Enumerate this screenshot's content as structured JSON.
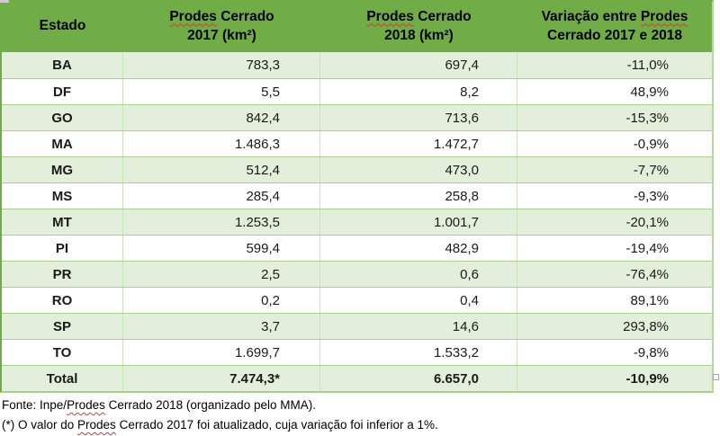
{
  "colors": {
    "header_green": "#70AD47",
    "row_green": "#E2EFDA",
    "grid_h": "#A9D08E",
    "grid_v": "#CCE2BA",
    "squiggle_red": "#D83A2E"
  },
  "table": {
    "columns": [
      {
        "label": "Estado"
      },
      {
        "line1_word": "Prodes",
        "line1_rest": " Cerrado",
        "line2": "2017 (km²)"
      },
      {
        "line1_word": "Prodes",
        "line1_rest": " Cerrado",
        "line2": "2018 (km²)"
      },
      {
        "line1_pre": "Variação entre ",
        "line1_word": "Prodes",
        "line2": "Cerrado 2017 e 2018"
      }
    ],
    "rows": [
      {
        "estado": "BA",
        "prodes_2017": "783,3",
        "prodes_2018": "697,4",
        "variacao": "-11,0%"
      },
      {
        "estado": "DF",
        "prodes_2017": "5,5",
        "prodes_2018": "8,2",
        "variacao": "48,9%"
      },
      {
        "estado": "GO",
        "prodes_2017": "842,4",
        "prodes_2018": "713,6",
        "variacao": "-15,3%"
      },
      {
        "estado": "MA",
        "prodes_2017": "1.486,3",
        "prodes_2018": "1.472,7",
        "variacao": "-0,9%"
      },
      {
        "estado": "MG",
        "prodes_2017": "512,4",
        "prodes_2018": "473,0",
        "variacao": "-7,7%"
      },
      {
        "estado": "MS",
        "prodes_2017": "285,4",
        "prodes_2018": "258,8",
        "variacao": "-9,3%"
      },
      {
        "estado": "MT",
        "prodes_2017": "1.253,5",
        "prodes_2018": "1.001,7",
        "variacao": "-20,1%"
      },
      {
        "estado": "PI",
        "prodes_2017": "599,4",
        "prodes_2018": "482,9",
        "variacao": "-19,4%"
      },
      {
        "estado": "PR",
        "prodes_2017": "2,5",
        "prodes_2018": "0,6",
        "variacao": "-76,4%"
      },
      {
        "estado": "RO",
        "prodes_2017": "0,2",
        "prodes_2018": "0,4",
        "variacao": "89,1%"
      },
      {
        "estado": "SP",
        "prodes_2017": "3,7",
        "prodes_2018": "14,6",
        "variacao": "293,8%"
      },
      {
        "estado": "TO",
        "prodes_2017": "1.699,7",
        "prodes_2018": "1.533,2",
        "variacao": "-9,8%"
      }
    ],
    "total": {
      "estado": "Total",
      "prodes_2017": "7.474,3*",
      "prodes_2018": "6.657,0",
      "variacao": "-10,9%"
    }
  },
  "footer": {
    "line1_pre": "Fonte: Inpe/",
    "line1_word": "Prodes",
    "line1_post": " Cerrado 2018 (organizado pelo MMA).",
    "line2_pre": "(*) O valor do ",
    "line2_word": "Prodes",
    "line2_post": " Cerrado 2017 foi atualizado, cuja variação foi inferior a 1%."
  }
}
